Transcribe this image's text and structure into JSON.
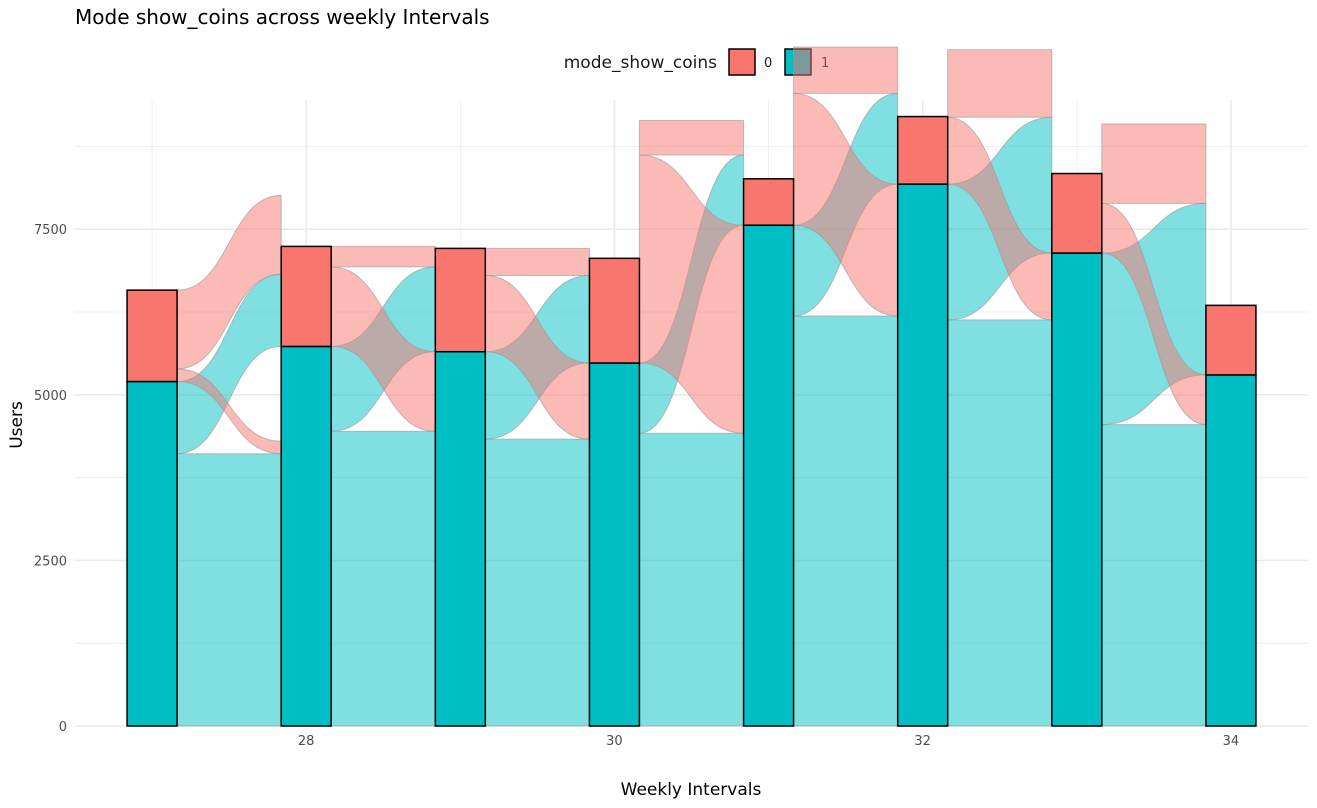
{
  "chart_data": {
    "type": "alluvial",
    "title": "Mode show_coins across weekly Intervals",
    "xlabel": "Weekly Intervals",
    "ylabel": "Users",
    "x": [
      27,
      28,
      29,
      30,
      31,
      32,
      33,
      34
    ],
    "xlim": [
      26.5,
      34.5
    ],
    "ylim": [
      0,
      9450
    ],
    "x_ticks": [
      "28",
      "30",
      "32",
      "34"
    ],
    "y_ticks": [
      "0",
      "2500",
      "5000",
      "7500"
    ],
    "grid": true,
    "legend": {
      "title": "mode_show_coins",
      "position": "top",
      "entries": [
        {
          "label": "0",
          "color": "#F8766D"
        },
        {
          "label": "1",
          "color": "#00BFC4"
        }
      ]
    },
    "series": [
      {
        "name": "1",
        "color": "#00BFC4",
        "values": [
          5200,
          5730,
          5650,
          5480,
          7560,
          8180,
          7140,
          5300
        ]
      },
      {
        "name": "0",
        "color": "#F8766D",
        "values": [
          1380,
          1510,
          1560,
          1580,
          700,
          1020,
          1200,
          1050
        ]
      }
    ],
    "flows": [
      {
        "from": "1",
        "to": "1",
        "values": [
          4110,
          4450,
          4330,
          4420,
          6190,
          6130,
          4550
        ]
      },
      {
        "from": "1",
        "to": "0",
        "values": [
          1090,
          1280,
          1320,
          1060,
          1370,
          2050,
          2590
        ]
      },
      {
        "from": "0",
        "to": "1",
        "values": [
          190,
          1200,
          1150,
          3140,
          1990,
          1010,
          750
        ]
      },
      {
        "from": "0",
        "to": "0",
        "values": [
          1190,
          310,
          410,
          520,
          700,
          1020,
          1200
        ]
      }
    ]
  }
}
